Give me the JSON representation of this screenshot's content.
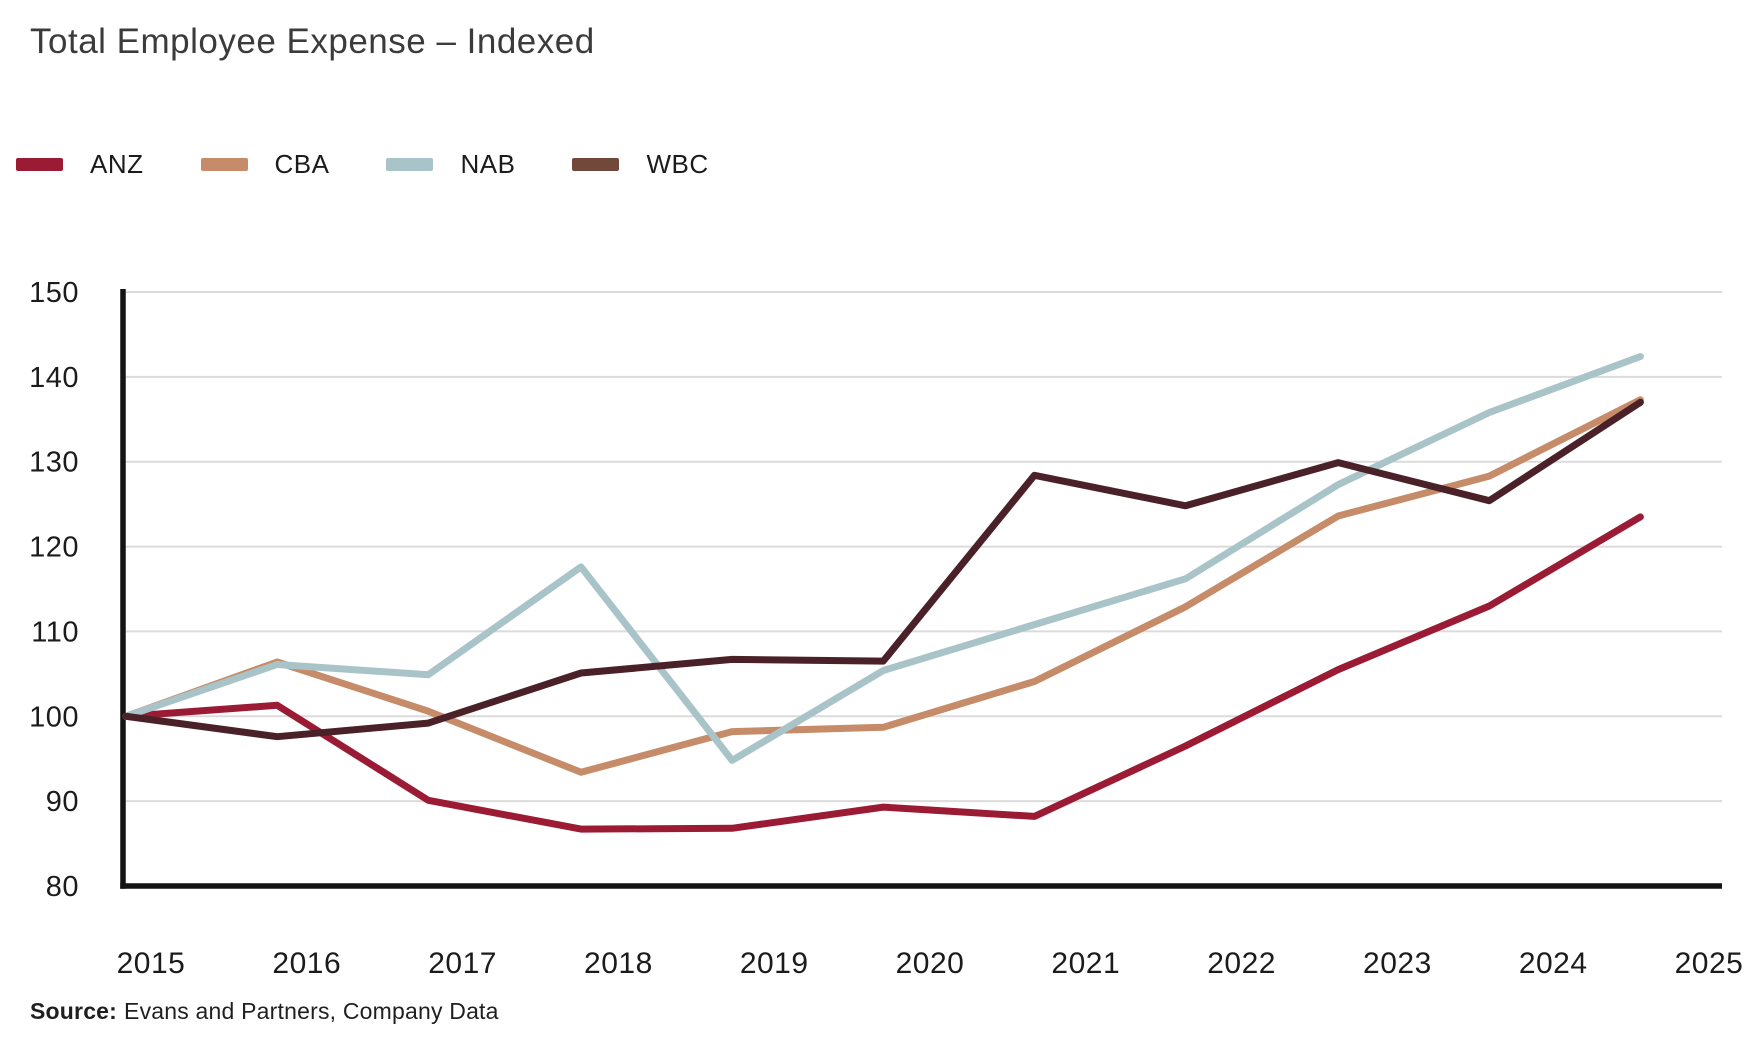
{
  "title": "Total Employee Expense – Indexed",
  "source": {
    "prefix": "Source:",
    "text": "Evans and Partners, Company Data"
  },
  "colors": {
    "background": "#FFFFFF",
    "title_text": "#3B3B3B",
    "tick_text": "#1B1B1B",
    "axis": "#141414",
    "gridline": "#DBDBDB"
  },
  "chart_data": {
    "type": "line",
    "title": "Total Employee Expense – Indexed",
    "xlabel": "",
    "ylabel": "",
    "x": [
      2014.84,
      2015.81,
      2016.78,
      2017.76,
      2018.73,
      2019.7,
      2020.67,
      2021.64,
      2022.62,
      2023.59,
      2024.56
    ],
    "x_ticks": [
      2015,
      2016,
      2017,
      2018,
      2019,
      2020,
      2021,
      2022,
      2023,
      2024,
      2025
    ],
    "y_ticks": [
      80,
      90,
      100,
      110,
      120,
      130,
      140,
      150
    ],
    "ylim": [
      80,
      150
    ],
    "grid": "horizontal",
    "legend_position": "top-left",
    "series": [
      {
        "name": "ANZ",
        "color": "#9B1B34",
        "swatch": "#9B1B34",
        "values": [
          100,
          101.3,
          90.1,
          86.7,
          86.8,
          89.3,
          88.2,
          96.5,
          105.5,
          113.0,
          123.5
        ]
      },
      {
        "name": "CBA",
        "color": "#C68C69",
        "swatch": "#C68C69",
        "values": [
          100,
          106.4,
          100.6,
          93.4,
          98.2,
          98.7,
          104.1,
          112.9,
          123.6,
          128.3,
          137.3
        ]
      },
      {
        "name": "NAB",
        "color": "#A9C4C8",
        "swatch": "#A9C4C8",
        "values": [
          100,
          106.1,
          104.9,
          117.6,
          94.8,
          105.4,
          110.8,
          116.2,
          127.3,
          135.8,
          142.4
        ]
      },
      {
        "name": "WBC",
        "color": "#4B2129",
        "swatch": "#72483A",
        "values": [
          100,
          97.6,
          99.2,
          105.1,
          106.7,
          106.5,
          128.4,
          124.8,
          129.9,
          125.4,
          137.0
        ]
      }
    ]
  }
}
